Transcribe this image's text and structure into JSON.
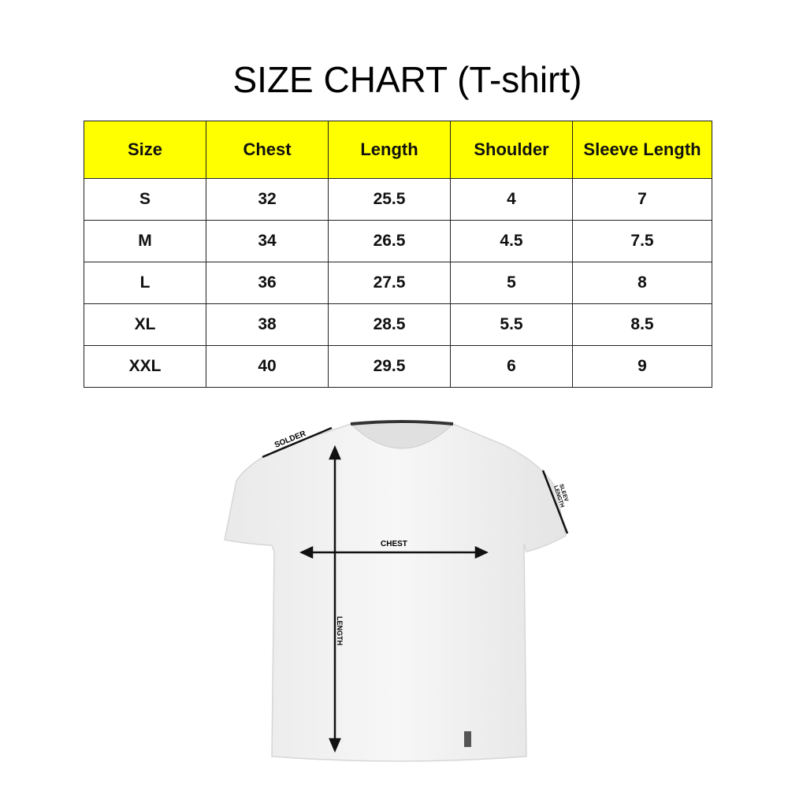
{
  "title": "SIZE CHART (T-shirt)",
  "table": {
    "headers": [
      "Size",
      "Chest",
      "Length",
      "Shoulder",
      "Sleeve Length"
    ],
    "rows": [
      [
        "S",
        "32",
        "25.5",
        "4",
        "7"
      ],
      [
        "M",
        "34",
        "26.5",
        "4.5",
        "7.5"
      ],
      [
        "L",
        "36",
        "27.5",
        "5",
        "8"
      ],
      [
        "XL",
        "38",
        "28.5",
        "5.5",
        "8.5"
      ],
      [
        "XXL",
        "40",
        "29.5",
        "6",
        "9"
      ]
    ],
    "header_color": "#ffff00"
  },
  "diagram": {
    "labels": {
      "shoulder": "SOLDER",
      "chest": "CHEST",
      "length": "LENGTH",
      "sleeve_line1": "SLEEV",
      "sleeve_line2": "LENGTH"
    }
  }
}
